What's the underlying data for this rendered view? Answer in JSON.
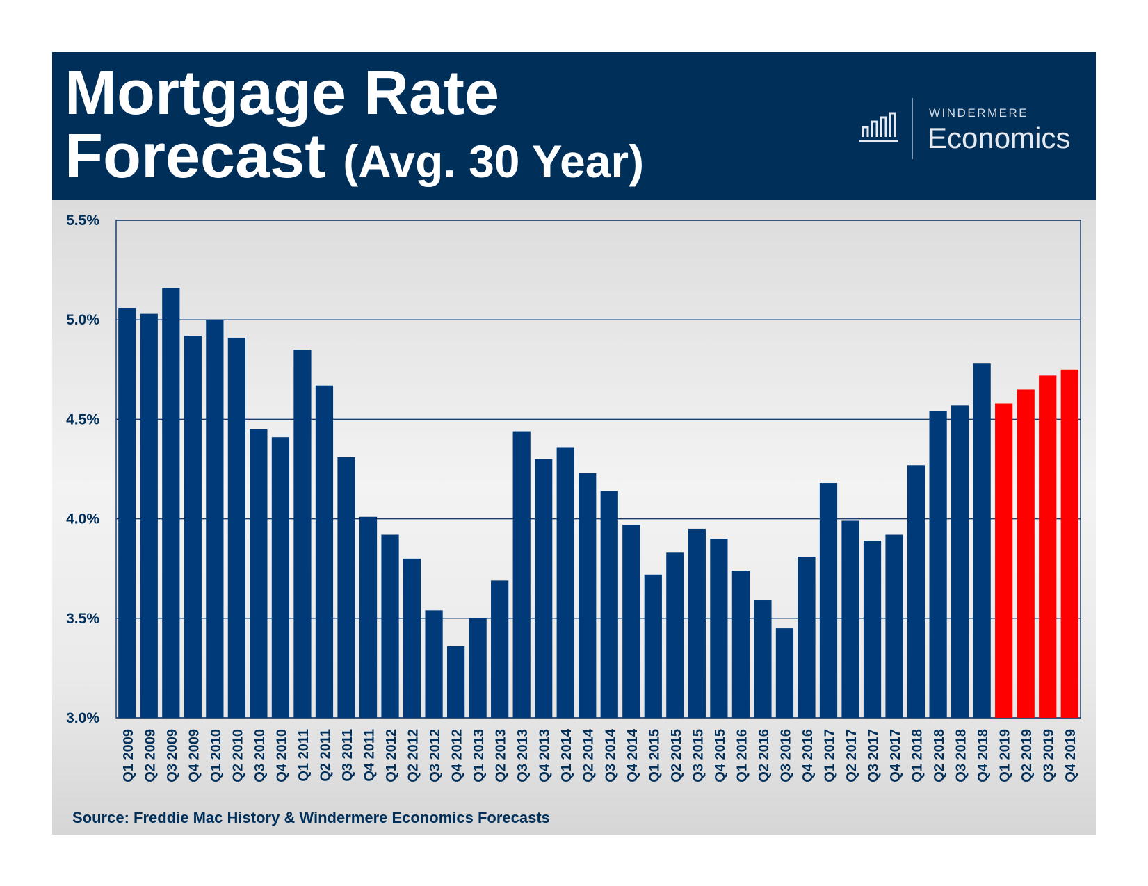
{
  "header": {
    "title_line1": "Mortgage Rate",
    "title_line2_main": "Forecast",
    "title_line2_suffix": "(Avg. 30 Year)",
    "brand_top": "WINDERMERE",
    "brand_bottom": "Economics",
    "brand_icon": "bar-chart-icon",
    "background_color": "#002f5a"
  },
  "source_note": "Source: Freddie Mac History & Windermere Economics Forecasts",
  "chart_data": {
    "type": "bar",
    "title": "Mortgage Rate Forecast (Avg. 30 Year)",
    "xlabel": "",
    "ylabel": "",
    "ylim": [
      3.0,
      5.5
    ],
    "y_ticks": [
      "3.0%",
      "3.5%",
      "4.0%",
      "4.5%",
      "5.0%",
      "5.5%"
    ],
    "y_tick_values": [
      3.0,
      3.5,
      4.0,
      4.5,
      5.0,
      5.5
    ],
    "grid": true,
    "legend": "none",
    "colors": {
      "history": "#003a78",
      "forecast": "#ff0000",
      "axis_text": "#002f5a"
    },
    "categories": [
      "Q1 2009",
      "Q2 2009",
      "Q3 2009",
      "Q4 2009",
      "Q1 2010",
      "Q2 2010",
      "Q3 2010",
      "Q4 2010",
      "Q1 2011",
      "Q2 2011",
      "Q3 2011",
      "Q4 2011",
      "Q1 2012",
      "Q2 2012",
      "Q3 2012",
      "Q4 2012",
      "Q1 2013",
      "Q2 2013",
      "Q3 2013",
      "Q4 2013",
      "Q1 2014",
      "Q2 2014",
      "Q3 2014",
      "Q4 2014",
      "Q1 2015",
      "Q2 2015",
      "Q3 2015",
      "Q4 2015",
      "Q1 2016",
      "Q2 2016",
      "Q3 2016",
      "Q4 2016",
      "Q1 2017",
      "Q2 2017",
      "Q3 2017",
      "Q4 2017",
      "Q1 2018",
      "Q2 2018",
      "Q3 2018",
      "Q4 2018",
      "Q1 2019",
      "Q2 2019",
      "Q3 2019",
      "Q4 2019"
    ],
    "values": [
      5.06,
      5.03,
      5.16,
      4.92,
      5.0,
      4.91,
      4.45,
      4.41,
      4.85,
      4.67,
      4.31,
      4.01,
      3.92,
      3.8,
      3.54,
      3.36,
      3.5,
      3.69,
      4.44,
      4.3,
      4.36,
      4.23,
      4.14,
      3.97,
      3.72,
      3.83,
      3.95,
      3.9,
      3.74,
      3.59,
      3.45,
      3.81,
      4.18,
      3.99,
      3.89,
      3.92,
      4.27,
      4.54,
      4.57,
      4.78,
      4.58,
      4.65,
      4.72,
      4.75
    ],
    "forecast_start_index": 40
  }
}
